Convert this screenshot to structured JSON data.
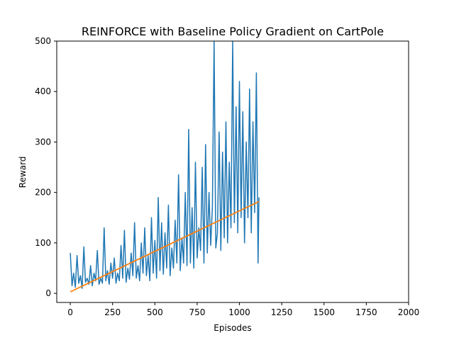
{
  "chart_data": {
    "type": "line",
    "title": "REINFORCE with Baseline Policy Gradient on CartPole",
    "xlabel": "Episodes",
    "ylabel": "Reward",
    "xlim": [
      -80,
      2000
    ],
    "ylim": [
      -18,
      500
    ],
    "xticks": [
      0,
      250,
      500,
      750,
      1000,
      1250,
      1500,
      1750,
      2000
    ],
    "yticks": [
      0,
      100,
      200,
      300,
      400,
      500
    ],
    "grid": false,
    "legend": "none",
    "series": [
      {
        "color": "#1f77b4",
        "x": [
          0,
          10,
          20,
          30,
          40,
          50,
          60,
          70,
          80,
          90,
          100,
          110,
          120,
          130,
          140,
          150,
          160,
          170,
          180,
          190,
          200,
          210,
          220,
          230,
          240,
          250,
          260,
          270,
          280,
          290,
          300,
          310,
          320,
          330,
          340,
          350,
          360,
          370,
          380,
          390,
          400,
          410,
          420,
          430,
          440,
          450,
          460,
          470,
          480,
          490,
          500,
          510,
          520,
          530,
          540,
          550,
          560,
          570,
          580,
          590,
          600,
          610,
          620,
          630,
          640,
          650,
          660,
          670,
          680,
          690,
          700,
          710,
          720,
          730,
          740,
          750,
          760,
          770,
          780,
          790,
          800,
          810,
          820,
          830,
          840,
          850,
          860,
          870,
          880,
          890,
          900,
          910,
          920,
          930,
          940,
          950,
          960,
          970,
          980,
          990,
          1000,
          1010,
          1020,
          1030,
          1040,
          1050,
          1060,
          1070,
          1080,
          1090,
          1100,
          1110,
          1115
        ],
        "y": [
          80,
          15,
          40,
          12,
          75,
          20,
          35,
          10,
          92,
          22,
          30,
          18,
          55,
          15,
          40,
          25,
          85,
          18,
          30,
          20,
          130,
          25,
          45,
          18,
          60,
          30,
          70,
          20,
          40,
          25,
          95,
          30,
          125,
          22,
          50,
          28,
          80,
          35,
          140,
          30,
          55,
          25,
          100,
          40,
          130,
          35,
          75,
          25,
          150,
          40,
          105,
          30,
          190,
          45,
          140,
          38,
          120,
          50,
          175,
          35,
          90,
          50,
          145,
          60,
          235,
          45,
          110,
          60,
          200,
          55,
          325,
          60,
          170,
          50,
          260,
          70,
          130,
          85,
          250,
          60,
          295,
          80,
          200,
          95,
          170,
          500,
          90,
          120,
          320,
          85,
          280,
          110,
          340,
          100,
          260,
          130,
          500,
          140,
          370,
          120,
          420,
          150,
          360,
          100,
          300,
          150,
          405,
          120,
          340,
          160,
          437,
          60,
          190
        ]
      },
      {
        "color": "#ff7f0e",
        "x": [
          0,
          1115
        ],
        "y": [
          3,
          182
        ]
      }
    ]
  }
}
